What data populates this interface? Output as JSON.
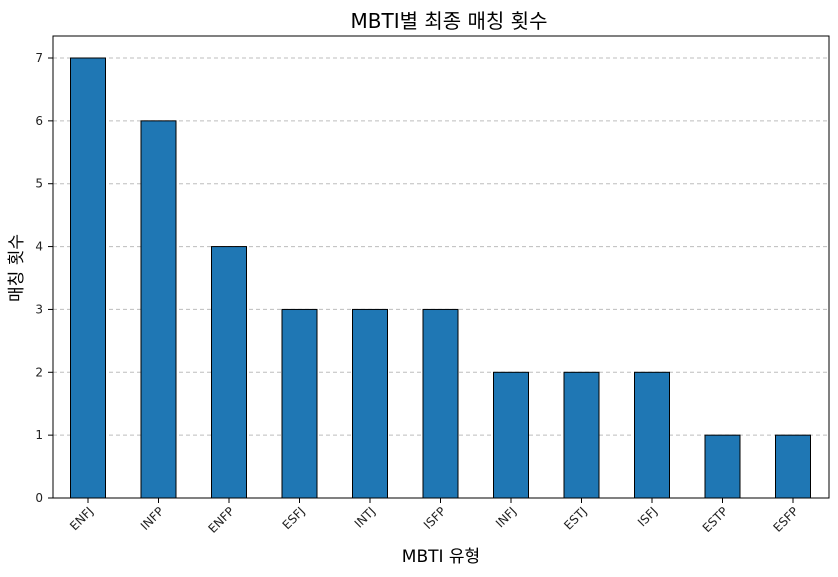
{
  "chart_data": {
    "type": "bar",
    "title": "MBTI별 최종 매칭 횟수",
    "xlabel": "MBTI 유형",
    "ylabel": "매칭 횟수",
    "categories": [
      "ENFJ",
      "INFP",
      "ENFP",
      "ESFJ",
      "INTJ",
      "ISFP",
      "INFJ",
      "ESTJ",
      "ISFJ",
      "ESTP",
      "ESFP"
    ],
    "values": [
      7,
      6,
      4,
      3,
      3,
      3,
      2,
      2,
      2,
      1,
      1
    ],
    "ylim": [
      0,
      7.35
    ],
    "yticks": [
      "0",
      "1",
      "2",
      "3",
      "4",
      "5",
      "6",
      "7"
    ],
    "grid": "y-dashed",
    "bar_color": "#1f77b4",
    "edge_color": "#000000"
  }
}
